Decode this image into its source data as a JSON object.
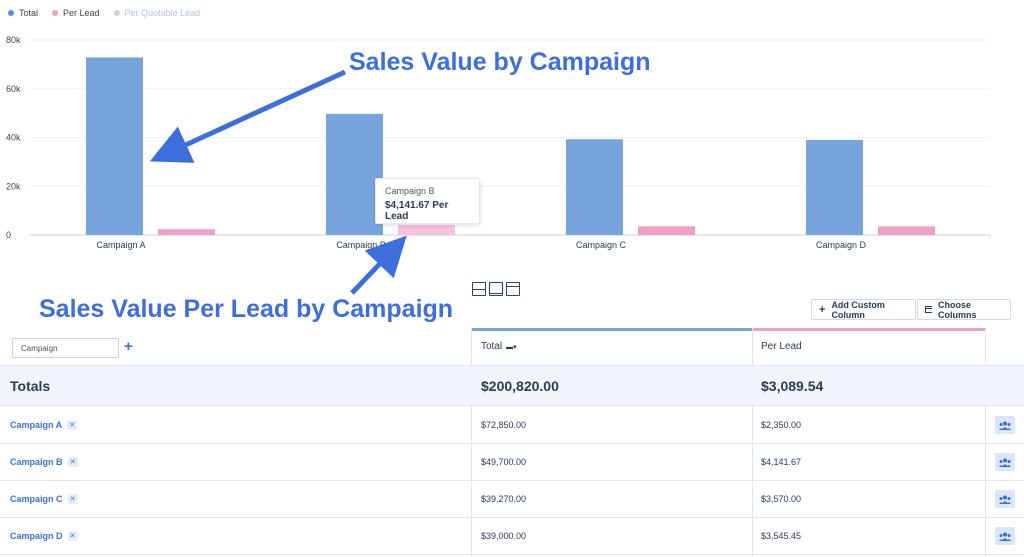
{
  "legend": [
    {
      "label": "Total",
      "color": "#5b8ed6",
      "active": true
    },
    {
      "label": "Per Lead",
      "color": "#f0a0c0",
      "active": true
    },
    {
      "label": "Per Quotable Lead",
      "color": "#c6d3e6",
      "active": false
    }
  ],
  "chart_data": {
    "type": "bar",
    "title": "",
    "xlabel": "",
    "ylabel": "",
    "categories": [
      "Campaign A",
      "Campaign B",
      "Campaign C",
      "Campaign D"
    ],
    "series": [
      {
        "name": "Total",
        "values": [
          72850,
          49700,
          39270,
          39000
        ],
        "color": "#78a4de"
      },
      {
        "name": "Per Lead",
        "values": [
          2350,
          4141.67,
          3570,
          3545.45
        ],
        "color": "#f0a0c0"
      }
    ],
    "ylim": [
      0,
      80000
    ],
    "yticks": [
      0,
      20000,
      40000,
      60000,
      80000
    ],
    "ytick_labels": [
      "0",
      "20k",
      "40k",
      "60k",
      "80k"
    ],
    "highlight": {
      "series": "Per Lead",
      "category": "Campaign B",
      "color": "#f7c0dc"
    }
  },
  "tooltip": {
    "title": "Campaign B",
    "value": "$4,141.67 Per Lead"
  },
  "annotations": {
    "top": "Sales Value by Campaign",
    "bottom": "Sales Value Per Lead by Campaign"
  },
  "toolbar": {
    "add_column": "Add Custom Column",
    "choose_columns": "Choose Columns"
  },
  "table": {
    "campaign_placeholder": "Campaign",
    "columns": [
      {
        "label": "Total",
        "bar_color": "#78a4de"
      },
      {
        "label": "Per Lead",
        "bar_color": "#f0a0c0"
      }
    ],
    "totals": {
      "label": "Totals",
      "total": "$200,820.00",
      "per_lead": "$3,089.54"
    },
    "rows": [
      {
        "name": "Campaign A",
        "total": "$72,850.00",
        "per_lead": "$2,350.00"
      },
      {
        "name": "Campaign B",
        "total": "$49,700.00",
        "per_lead": "$4,141.67"
      },
      {
        "name": "Campaign C",
        "total": "$39,270.00",
        "per_lead": "$3,570.00"
      },
      {
        "name": "Campaign D",
        "total": "$39,000.00",
        "per_lead": "$3,545.45"
      }
    ]
  }
}
